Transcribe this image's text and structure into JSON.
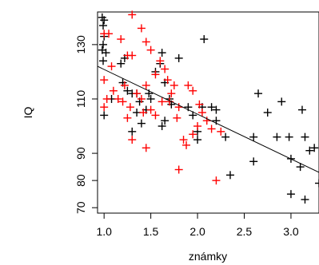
{
  "chart_data": {
    "type": "scatter",
    "title": "",
    "xlabel": "známky",
    "ylabel": "IQ",
    "xlim": [
      0.93,
      3.3
    ],
    "ylim": [
      68,
      142
    ],
    "x_ticks": [
      "1.0",
      "1.5",
      "2.0",
      "2.5",
      "3.0"
    ],
    "y_ticks": [
      "70",
      "80",
      "90",
      "110",
      "130"
    ],
    "grid": false,
    "legend": "none",
    "series": [
      {
        "color": "#000000",
        "marker": "plus",
        "points": [
          [
            0.98,
            140
          ],
          [
            1.0,
            139
          ],
          [
            0.99,
            137
          ],
          [
            1.0,
            133
          ],
          [
            0.99,
            130
          ],
          [
            0.98,
            128
          ],
          [
            1.02,
            127
          ],
          [
            0.99,
            124
          ],
          [
            1.18,
            123
          ],
          [
            1.22,
            125
          ],
          [
            1.08,
            110
          ],
          [
            1.0,
            104
          ],
          [
            1.2,
            116
          ],
          [
            1.25,
            113
          ],
          [
            1.3,
            112
          ],
          [
            1.35,
            112
          ],
          [
            1.38,
            109
          ],
          [
            1.45,
            106
          ],
          [
            1.48,
            112
          ],
          [
            1.55,
            120
          ],
          [
            1.62,
            127
          ],
          [
            1.6,
            123
          ],
          [
            1.65,
            116
          ],
          [
            1.7,
            110
          ],
          [
            1.72,
            108
          ],
          [
            1.65,
            102
          ],
          [
            1.62,
            100
          ],
          [
            1.5,
            110
          ],
          [
            1.4,
            101
          ],
          [
            1.35,
            105
          ],
          [
            1.3,
            98
          ],
          [
            1.8,
            125
          ],
          [
            1.9,
            107
          ],
          [
            1.95,
            104
          ],
          [
            2.0,
            98
          ],
          [
            2.0,
            95
          ],
          [
            2.05,
            107
          ],
          [
            2.07,
            132
          ],
          [
            2.15,
            107
          ],
          [
            2.2,
            106
          ],
          [
            2.2,
            102
          ],
          [
            2.3,
            96
          ],
          [
            2.35,
            82
          ],
          [
            2.6,
            96
          ],
          [
            2.6,
            87
          ],
          [
            2.65,
            112
          ],
          [
            2.75,
            105
          ],
          [
            2.85,
            96
          ],
          [
            2.9,
            109
          ],
          [
            2.98,
            96
          ],
          [
            3.0,
            88
          ],
          [
            3.0,
            75
          ],
          [
            3.1,
            85
          ],
          [
            3.12,
            106
          ],
          [
            3.15,
            96
          ],
          [
            3.15,
            73
          ],
          [
            3.2,
            91
          ],
          [
            3.25,
            92
          ],
          [
            3.3,
            79
          ]
        ]
      },
      {
        "color": "#ff0000",
        "marker": "plus",
        "points": [
          [
            1.3,
            141
          ],
          [
            1.4,
            136
          ],
          [
            1.18,
            132
          ],
          [
            1.0,
            134
          ],
          [
            1.05,
            134
          ],
          [
            1.08,
            122
          ],
          [
            1.22,
            115
          ],
          [
            1.25,
            126
          ],
          [
            1.3,
            126
          ],
          [
            1.45,
            131
          ],
          [
            1.5,
            128
          ],
          [
            1.55,
            119
          ],
          [
            1.6,
            124
          ],
          [
            1.65,
            121
          ],
          [
            1.68,
            117
          ],
          [
            1.75,
            115
          ],
          [
            1.8,
            107
          ],
          [
            1.9,
            115
          ],
          [
            1.95,
            113
          ],
          [
            2.02,
            108
          ],
          [
            2.0,
            100
          ],
          [
            2.05,
            105
          ],
          [
            2.1,
            102
          ],
          [
            2.15,
            99
          ],
          [
            2.25,
            98
          ],
          [
            2.2,
            80
          ],
          [
            1.0,
            117
          ],
          [
            1.03,
            110
          ],
          [
            1.0,
            107
          ],
          [
            1.1,
            113
          ],
          [
            1.15,
            110
          ],
          [
            1.2,
            109
          ],
          [
            1.28,
            107
          ],
          [
            1.35,
            112
          ],
          [
            1.4,
            110
          ],
          [
            1.45,
            115
          ],
          [
            1.42,
            105
          ],
          [
            1.5,
            106
          ],
          [
            1.55,
            104
          ],
          [
            1.62,
            109
          ],
          [
            1.72,
            112
          ],
          [
            1.78,
            103
          ],
          [
            1.85,
            95
          ],
          [
            1.88,
            93
          ],
          [
            1.95,
            97
          ],
          [
            1.8,
            84
          ],
          [
            1.45,
            92
          ],
          [
            1.3,
            95
          ],
          [
            1.25,
            103
          ],
          [
            1.7,
            109
          ]
        ]
      }
    ],
    "regression_line": {
      "color": "#000000",
      "from": [
        0.93,
        122
      ],
      "to": [
        3.3,
        83
      ]
    }
  }
}
